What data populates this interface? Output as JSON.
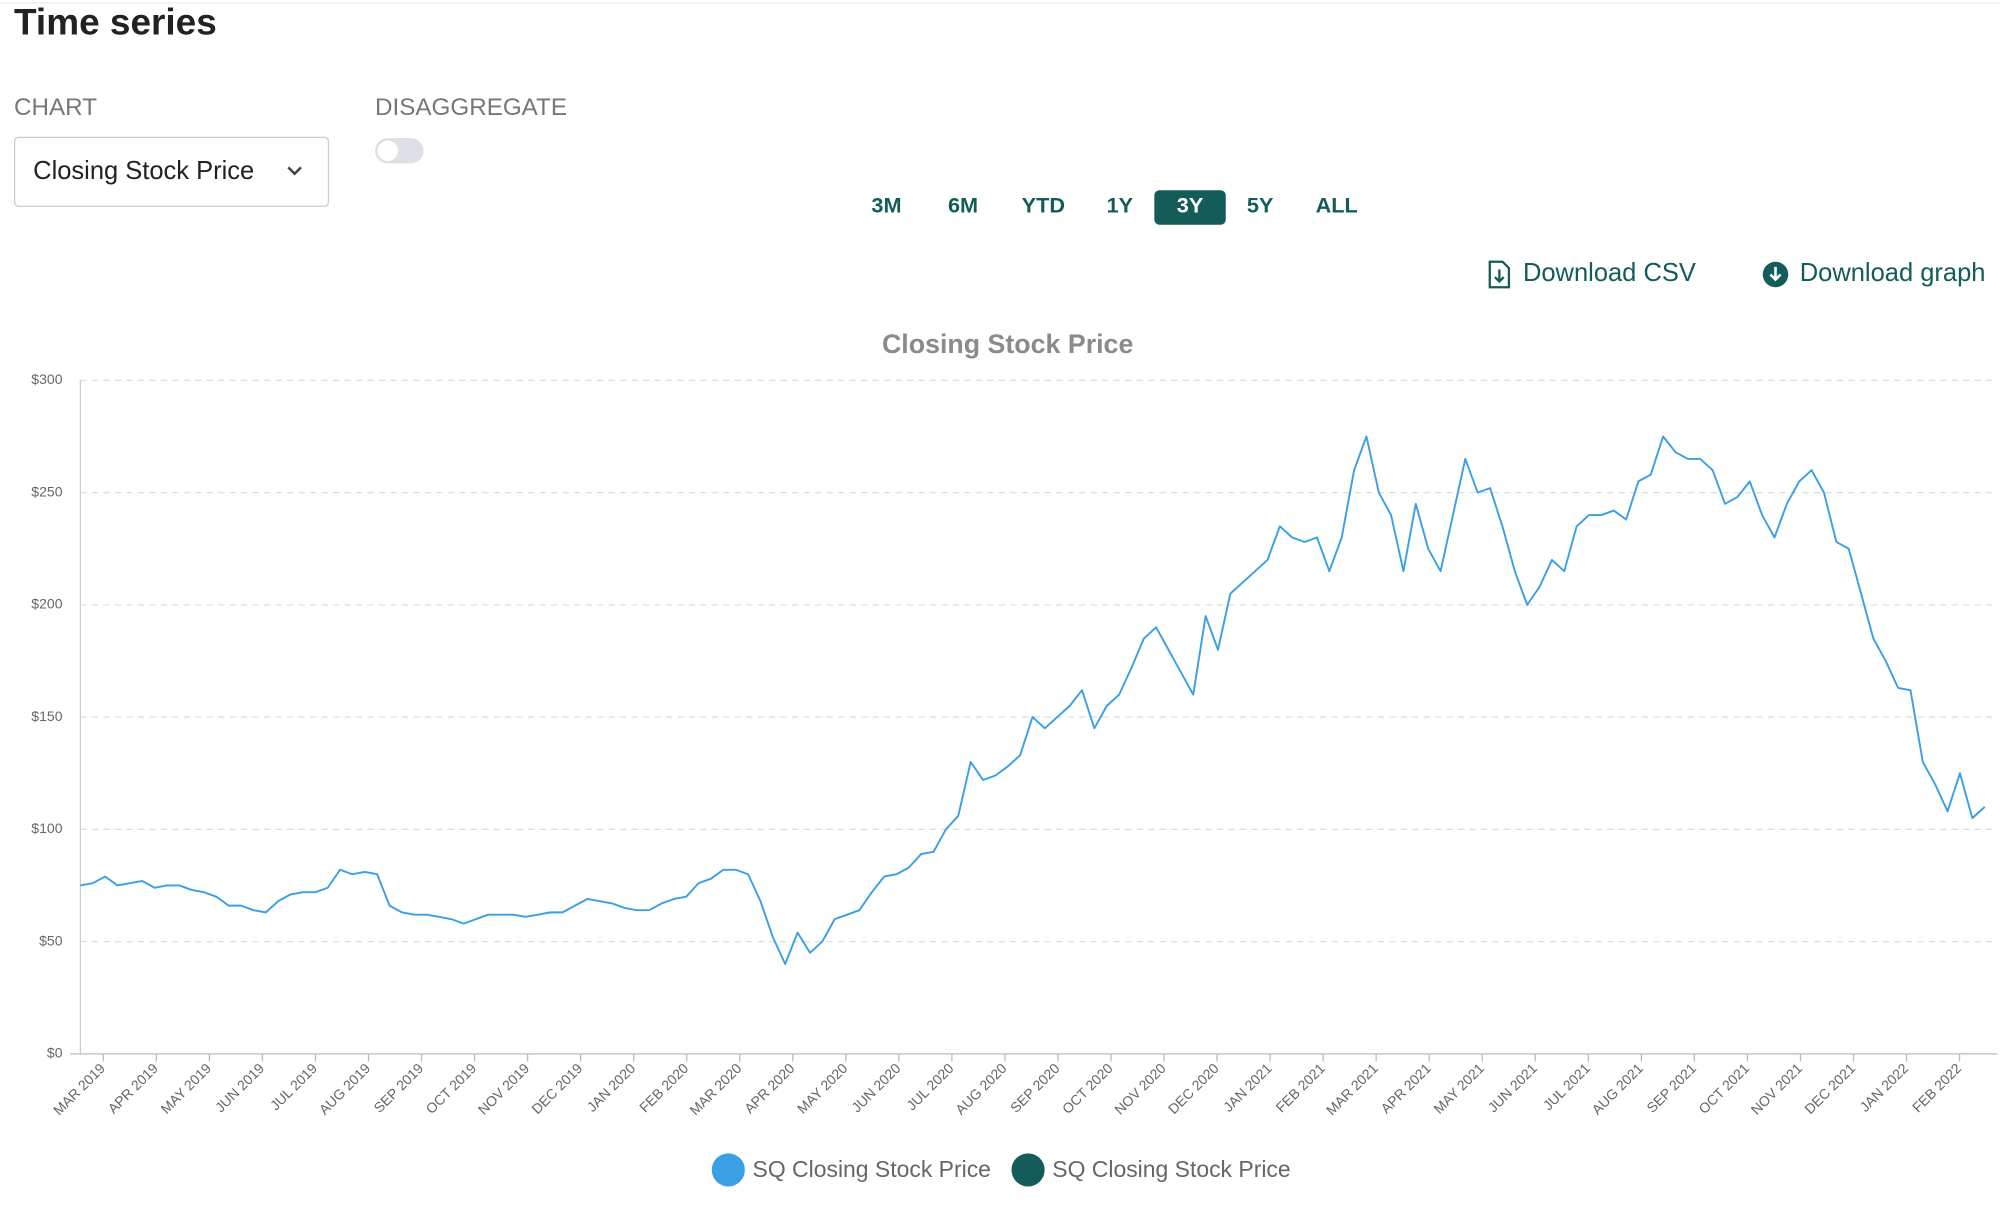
{
  "ui": {
    "title": "Time series",
    "chart_label": "CHART",
    "chart_select": "Closing Stock Price",
    "disaggregate_label": "DISAGGREGATE",
    "ranges": [
      "3M",
      "6M",
      "YTD",
      "1Y",
      "3Y",
      "5Y",
      "ALL"
    ],
    "active_range": "3Y",
    "download_csv": "Download CSV",
    "download_graph": "Download graph"
  },
  "chart_data": {
    "type": "line",
    "title": "Closing Stock Price",
    "xticks": [
      "MAR 2019",
      "APR 2019",
      "MAY 2019",
      "JUN 2019",
      "JUL 2019",
      "AUG 2019",
      "SEP 2019",
      "OCT 2019",
      "NOV 2019",
      "DEC 2019",
      "JAN 2020",
      "FEB 2020",
      "MAR 2020",
      "APR 2020",
      "MAY 2020",
      "JUN 2020",
      "JUL 2020",
      "AUG 2020",
      "SEP 2020",
      "OCT 2020",
      "NOV 2020",
      "DEC 2020",
      "JAN 2021",
      "FEB 2021",
      "MAR 2021",
      "APR 2021",
      "MAY 2021",
      "JUN 2021",
      "JUL 2021",
      "AUG 2021",
      "SEP 2021",
      "OCT 2021",
      "NOV 2021",
      "DEC 2021",
      "JAN 2022",
      "FEB 2022"
    ],
    "ylim": [
      0,
      300
    ],
    "yticks": [
      {
        "value": 0,
        "label": "$0"
      },
      {
        "value": 50,
        "label": "$50"
      },
      {
        "value": 100,
        "label": "$100"
      },
      {
        "value": 150,
        "label": "$150"
      },
      {
        "value": 200,
        "label": "$200"
      },
      {
        "value": 250,
        "label": "$250"
      },
      {
        "value": 300,
        "label": "$300"
      }
    ],
    "grid": true,
    "legend": "bottom",
    "series": [
      {
        "name": "SQ Closing Stock Price",
        "color": "#3b9fe3",
        "values": [
          75,
          76,
          79,
          75,
          76,
          77,
          74,
          75,
          75,
          73,
          72,
          70,
          66,
          66,
          64,
          63,
          68,
          71,
          72,
          72,
          74,
          82,
          80,
          81,
          80,
          66,
          63,
          62,
          62,
          61,
          60,
          58,
          60,
          62,
          62,
          62,
          61,
          62,
          63,
          63,
          66,
          69,
          68,
          67,
          65,
          64,
          64,
          67,
          69,
          70,
          76,
          78,
          82,
          82,
          80,
          68,
          52,
          40,
          54,
          45,
          50,
          60,
          62,
          64,
          72,
          79,
          80,
          83,
          89,
          90,
          100,
          106,
          130,
          122,
          124,
          128,
          133,
          150,
          145,
          150,
          155,
          162,
          145,
          155,
          160,
          172,
          185,
          190,
          180,
          170,
          160,
          195,
          180,
          205,
          210,
          215,
          220,
          235,
          230,
          228,
          230,
          215,
          230,
          260,
          275,
          250,
          240,
          215,
          245,
          225,
          215,
          240,
          265,
          250,
          252,
          235,
          215,
          200,
          208,
          220,
          215,
          235,
          240,
          240,
          242,
          238,
          255,
          258,
          275,
          268,
          265,
          265,
          260,
          245,
          248,
          255,
          240,
          230,
          245,
          255,
          260,
          250,
          228,
          225,
          205,
          185,
          175,
          163,
          162,
          130,
          120,
          108,
          125,
          105,
          110
        ]
      },
      {
        "name": "SQ Closing Stock Price",
        "color": "#135c5a",
        "values": []
      }
    ]
  }
}
